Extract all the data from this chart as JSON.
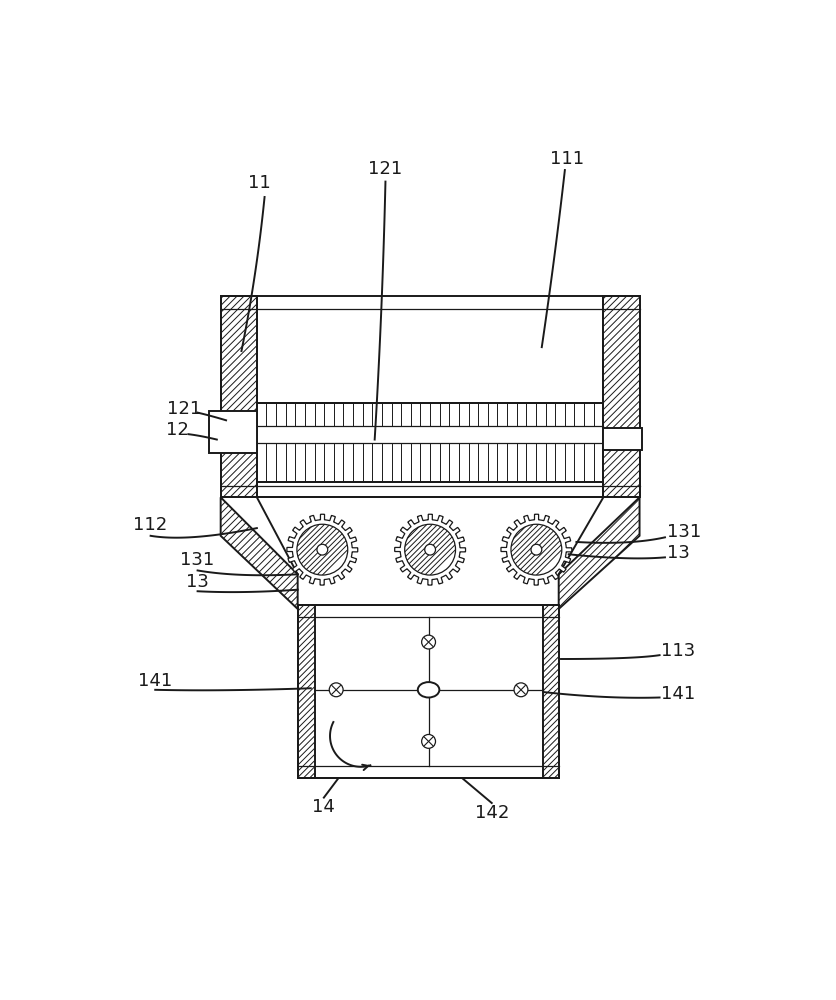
{
  "bg_color": "#ffffff",
  "line_color": "#1a1a1a",
  "lw_main": 1.4,
  "lw_thin": 0.9,
  "lw_hatch": 0.7,
  "fig_width": 8.37,
  "fig_height": 10.0,
  "dpi": 100
}
